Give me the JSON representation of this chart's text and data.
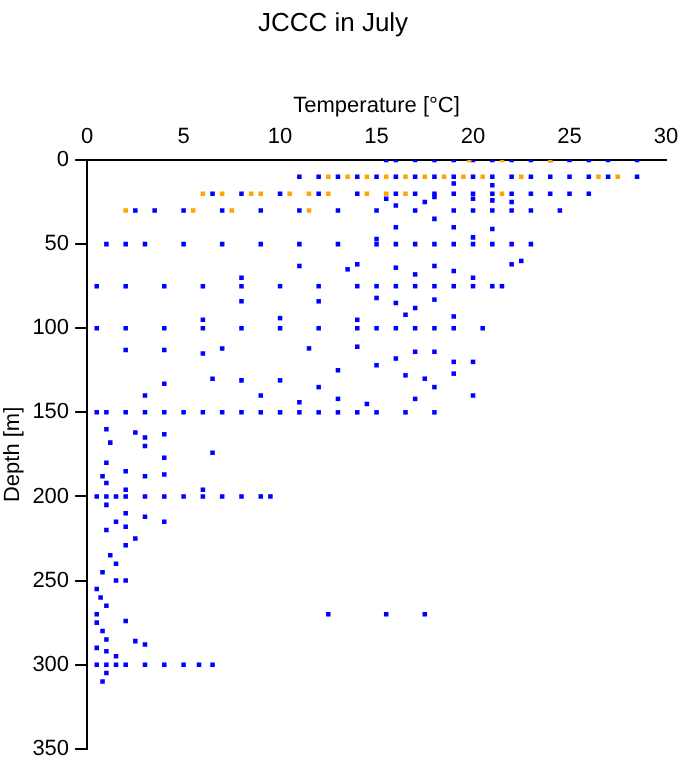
{
  "chart_data": {
    "type": "scatter",
    "title": "JCCC in July",
    "xlabel": "Temperature [°C]",
    "ylabel": "Depth [m]",
    "marker": "square",
    "xlim": [
      0,
      30
    ],
    "xticks": [
      0,
      5,
      10,
      15,
      20,
      25,
      30
    ],
    "ylim": [
      350,
      0
    ],
    "yticks": [
      0,
      50,
      100,
      150,
      200,
      250,
      300,
      350
    ],
    "series": [
      {
        "color": "#0000ff",
        "x": [
          15.5,
          16,
          17,
          18,
          19,
          20,
          21,
          22,
          23,
          24,
          25,
          26,
          27,
          28.5,
          11,
          12,
          13,
          14,
          15,
          16,
          17,
          18,
          19,
          20,
          21,
          22,
          23,
          24,
          25,
          26,
          27,
          28.5,
          6.5,
          8,
          10,
          12,
          14,
          16,
          17,
          18,
          19,
          20,
          21,
          22,
          23,
          24,
          25,
          26,
          2.5,
          3.5,
          5,
          7,
          9,
          11,
          13,
          15,
          17,
          19,
          20,
          21,
          22,
          23,
          24.5,
          16,
          17.5,
          15.5,
          18,
          20,
          21,
          22,
          18,
          21,
          19,
          1,
          2,
          3,
          5,
          7,
          9,
          11,
          13,
          15,
          16,
          17,
          18,
          19,
          20,
          21,
          22,
          23,
          16,
          19,
          21,
          15,
          20,
          22.5,
          22,
          11,
          14,
          13.5,
          16,
          17,
          18,
          19,
          20,
          8,
          0.5,
          2,
          4,
          6,
          8,
          10,
          12,
          14,
          15,
          16,
          17,
          18,
          19,
          20,
          21,
          21.5,
          8,
          12,
          15,
          16,
          17,
          18,
          16.5,
          19,
          14,
          10,
          6,
          0.5,
          2,
          4,
          6,
          8,
          10,
          12,
          14,
          15,
          16,
          17,
          18,
          19,
          20.5,
          2,
          4,
          7,
          6,
          11.5,
          14,
          16,
          17,
          18,
          19,
          20,
          15,
          13,
          16.5,
          19,
          17.5,
          18,
          12,
          10,
          8,
          6.5,
          4,
          3,
          9,
          13,
          17,
          20,
          14.5,
          11,
          0.5,
          1,
          2,
          3,
          4,
          5,
          6,
          7,
          8,
          9,
          10,
          11,
          12,
          13,
          14,
          15,
          16.5,
          18,
          1,
          2.5,
          3,
          4,
          1.2,
          3,
          6.5,
          4,
          1,
          2,
          3,
          4,
          6,
          1,
          2,
          0.8,
          0.5,
          1,
          1.5,
          2,
          3,
          4,
          5,
          6,
          7,
          8,
          9,
          9.5,
          1,
          2,
          1.5,
          2,
          3,
          4,
          1,
          2.5,
          2,
          1.2,
          1.5,
          0.8,
          2,
          1.5,
          0.5,
          0.7,
          1,
          0.5,
          0.5,
          2,
          0.8,
          1,
          2.5,
          3,
          0.5,
          1,
          1.5,
          1,
          0.8,
          0.5,
          1,
          1.5,
          2,
          3,
          4,
          5,
          5.8,
          6.5,
          12.5,
          15.5,
          17.5
        ],
        "values": [
          0,
          0,
          0,
          0,
          0,
          0,
          0,
          0,
          0,
          0,
          0,
          0,
          0,
          0,
          10,
          10,
          10,
          10,
          10,
          10,
          10,
          10,
          10,
          10,
          10,
          10,
          10,
          10,
          10,
          10,
          10,
          10,
          20,
          20,
          20,
          20,
          20,
          20,
          20,
          20,
          20,
          20,
          20,
          20,
          20,
          20,
          20,
          20,
          30,
          30,
          30,
          30,
          30,
          30,
          30,
          30,
          30,
          30,
          30,
          30,
          30,
          30,
          30,
          27,
          25,
          23,
          22,
          23,
          24,
          25,
          35,
          15,
          14,
          50,
          50,
          50,
          50,
          50,
          50,
          50,
          50,
          50,
          50,
          50,
          50,
          50,
          50,
          50,
          50,
          50,
          40,
          40,
          41,
          47,
          46,
          60,
          62,
          63,
          62,
          65,
          64,
          68,
          63,
          66,
          70,
          70,
          75,
          75,
          75,
          75,
          75,
          75,
          75,
          75,
          75,
          75,
          75,
          75,
          75,
          75,
          75,
          75,
          84,
          84,
          82,
          85,
          88,
          83,
          92,
          93,
          95,
          94,
          95,
          100,
          100,
          100,
          100,
          100,
          100,
          100,
          100,
          100,
          100,
          100,
          100,
          100,
          100,
          113,
          113,
          112,
          115,
          112,
          111,
          118,
          114,
          114,
          120,
          120,
          122,
          125,
          128,
          127,
          130,
          135,
          135,
          131,
          131,
          130,
          133,
          140,
          140,
          142,
          142,
          140,
          145,
          144,
          150,
          150,
          150,
          150,
          150,
          150,
          150,
          150,
          150,
          150,
          150,
          150,
          150,
          150,
          150,
          150,
          150,
          150,
          160,
          162,
          165,
          163,
          168,
          170,
          174,
          177,
          180,
          185,
          188,
          187,
          196,
          192,
          196,
          188,
          200,
          200,
          200,
          200,
          200,
          200,
          200,
          200,
          200,
          200,
          200,
          200,
          205,
          210,
          215,
          218,
          212,
          215,
          220,
          225,
          229,
          235,
          240,
          245,
          250,
          250,
          255,
          260,
          265,
          270,
          275,
          274,
          280,
          285,
          286,
          288,
          290,
          292,
          295,
          305,
          310,
          300,
          300,
          300,
          300,
          300,
          300,
          300,
          300,
          300,
          270,
          270,
          270
        ]
      },
      {
        "color": "#ffa500",
        "x": [
          19.8,
          21.5,
          24,
          12.5,
          13.5,
          14.5,
          15.5,
          16.5,
          17.5,
          18.5,
          19.5,
          20.5,
          22.5,
          26.5,
          27.5,
          6,
          7,
          8.5,
          9,
          10.5,
          11.5,
          12.5,
          14.5,
          15.5,
          16.5,
          21.5,
          2,
          5.5,
          7.5,
          11.5
        ],
        "values": [
          0,
          0,
          0,
          10,
          10,
          10,
          10,
          10,
          10,
          10,
          10,
          10,
          10,
          10,
          10,
          20,
          20,
          20,
          20,
          20,
          20,
          20,
          20,
          20,
          20,
          20,
          30,
          30,
          30,
          30
        ]
      }
    ]
  }
}
